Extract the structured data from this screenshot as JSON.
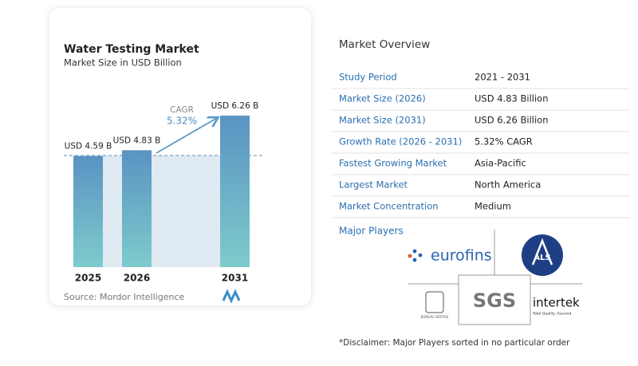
{
  "chart_data": {
    "type": "bar",
    "title": "Water Testing Market",
    "subtitle": "Market Size in USD Billion",
    "categories": [
      "2025",
      "2026",
      "2031"
    ],
    "values": [
      4.59,
      4.83,
      6.26
    ],
    "value_labels": [
      "USD 4.59 B",
      "USD 4.83 B",
      "USD 6.26 B"
    ],
    "annotation": {
      "label": "CAGR",
      "value": "5.32%"
    },
    "source": "Source:  Mordor Intelligence"
  },
  "overview": {
    "title": "Market Overview",
    "rows": [
      [
        "Study Period",
        "2021 - 2031"
      ],
      [
        "Market Size (2026)",
        "USD 4.83 Billion"
      ],
      [
        "Market Size (2031)",
        "USD 6.26 Billion"
      ],
      [
        "Growth Rate (2026 - 2031)",
        "5.32% CAGR"
      ],
      [
        "Fastest Growing Market",
        "Asia-Pacific"
      ],
      [
        "Largest Market",
        "North America"
      ],
      [
        "Market Concentration",
        "Medium"
      ]
    ]
  },
  "players": {
    "title": "Major Players",
    "logos": [
      "eurofins",
      "ALS",
      "BUREAU VERITAS",
      "SGS",
      "intertek",
      "Total Quality. Assured."
    ]
  },
  "disclaimer": "*Disclaimer: Major Players sorted in no particular order"
}
